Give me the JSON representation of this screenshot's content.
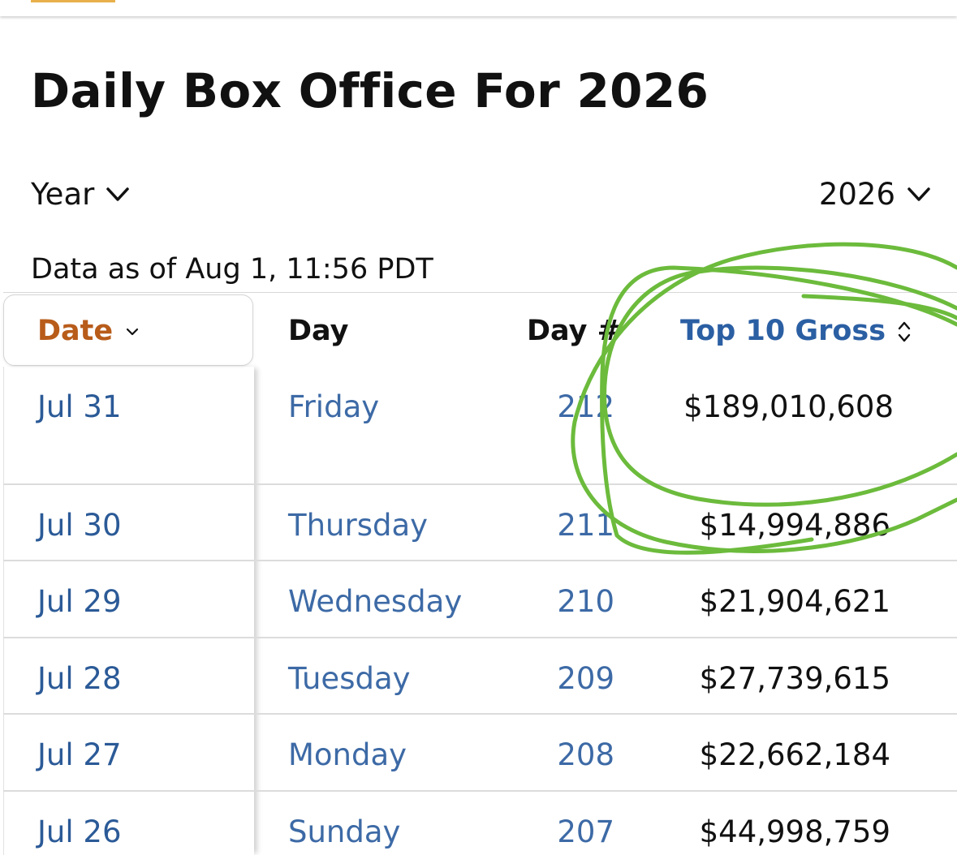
{
  "page": {
    "title": "Daily Box Office For 2026",
    "accent_color": "#e8b04a"
  },
  "filters": {
    "period_label": "Year",
    "year_value": "2026"
  },
  "data_as_of": "Data as of Aug 1, 11:56 PDT",
  "table": {
    "headers": {
      "date": "Date",
      "day": "Day",
      "day_num": "Day #",
      "gross": "Top 10 Gross"
    },
    "rows": [
      {
        "date": "Jul 31",
        "day": "Friday",
        "day_num": "212",
        "gross": "$189,010,608"
      },
      {
        "date": "Jul 30",
        "day": "Thursday",
        "day_num": "211",
        "gross": "$14,994,886"
      },
      {
        "date": "Jul 29",
        "day": "Wednesday",
        "day_num": "210",
        "gross": "$21,904,621"
      },
      {
        "date": "Jul 28",
        "day": "Tuesday",
        "day_num": "209",
        "gross": "$27,739,615"
      },
      {
        "date": "Jul 27",
        "day": "Monday",
        "day_num": "208",
        "gross": "$22,662,184"
      },
      {
        "date": "Jul 26",
        "day": "Sunday",
        "day_num": "207",
        "gross": "$44,998,759"
      }
    ]
  },
  "colors": {
    "link": "#2b5a97",
    "sorted_header": "#b85c1a",
    "scribble": "#6cbb3c"
  }
}
